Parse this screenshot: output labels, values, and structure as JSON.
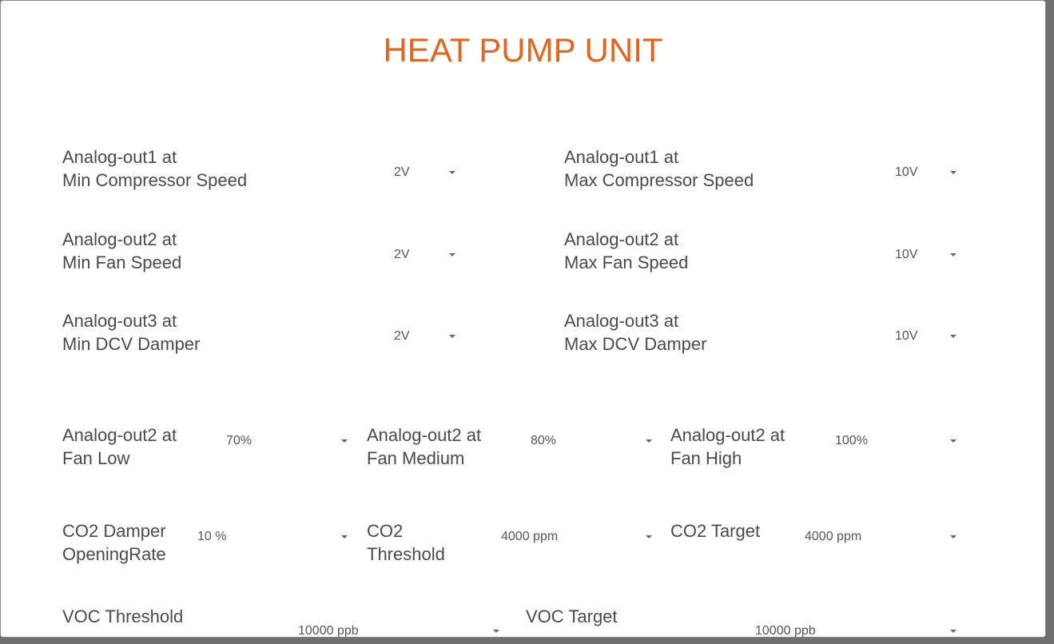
{
  "title": "HEAT PUMP UNIT",
  "fields": [
    {
      "label": [
        "Analog-out1 at",
        "Min Compressor Speed"
      ],
      "value": "2V"
    },
    {
      "label": [
        "Analog-out1 at",
        "Max Compressor Speed"
      ],
      "value": "10V"
    },
    {
      "label": [
        "Analog-out2 at",
        "Min Fan Speed"
      ],
      "value": "2V"
    },
    {
      "label": [
        "Analog-out2 at",
        "Max Fan Speed"
      ],
      "value": "10V"
    },
    {
      "label": [
        "Analog-out3 at",
        "Min DCV Damper"
      ],
      "value": "2V"
    },
    {
      "label": [
        "Analog-out3 at",
        "Max DCV Damper"
      ],
      "value": "10V"
    },
    {
      "label": [
        "Analog-out2 at",
        "Fan Low"
      ],
      "value": "70%"
    },
    {
      "label": [
        "Analog-out2 at",
        "Fan Medium"
      ],
      "value": "80%"
    },
    {
      "label": [
        "Analog-out2 at",
        "Fan High"
      ],
      "value": "100%"
    },
    {
      "label": [
        "CO2 Damper",
        "OpeningRate"
      ],
      "value": "10 %"
    },
    {
      "label": [
        "CO2",
        "Threshold"
      ],
      "value": "4000 ppm"
    },
    {
      "label": [
        "CO2 Target"
      ],
      "value": "4000 ppm"
    },
    {
      "label": [
        "VOC Threshold"
      ],
      "value": "10000 ppb"
    },
    {
      "label": [
        "VOC Target"
      ],
      "value": "10000 ppb"
    }
  ]
}
